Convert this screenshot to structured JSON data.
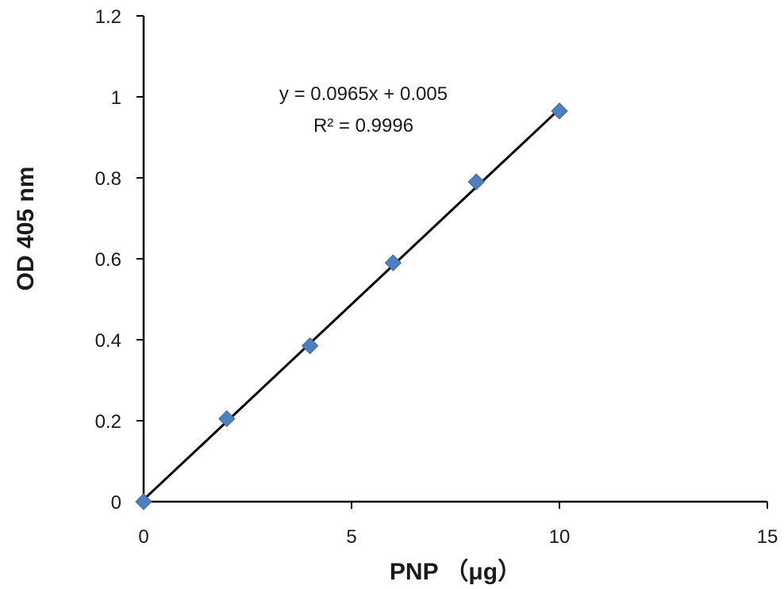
{
  "chart_data": {
    "type": "scatter",
    "xlabel": "PNP （μg）",
    "ylabel": "OD 405 nm",
    "xlim": [
      0,
      15
    ],
    "ylim": [
      0,
      1.2
    ],
    "x_ticks": [
      "0",
      "5",
      "10",
      "15"
    ],
    "y_ticks": [
      "0",
      "0.2",
      "0.4",
      "0.6",
      "0.8",
      "1",
      "1.2"
    ],
    "grid": false,
    "series": [
      {
        "x": [
          0,
          2,
          4,
          6,
          8,
          10
        ],
        "y": [
          0,
          0.205,
          0.385,
          0.59,
          0.79,
          0.965
        ],
        "color": "#4f7fbf",
        "marker": "diamond"
      }
    ],
    "trendline": {
      "slope": 0.0965,
      "intercept": 0.005,
      "color": "#000000",
      "equation": "y = 0.0965x + 0.005",
      "r_squared": "R² = 0.9996"
    }
  }
}
